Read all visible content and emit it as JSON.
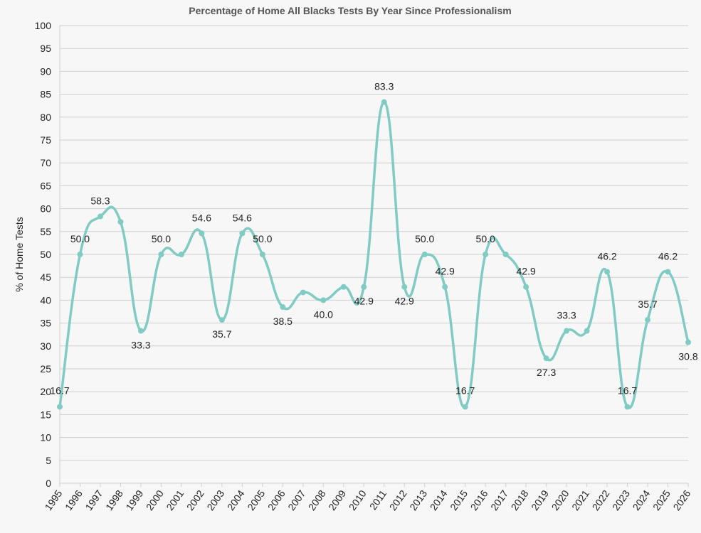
{
  "chart_data": {
    "type": "line",
    "title": "Percentage of Home All Blacks Tests By Year Since Professionalism",
    "xlabel": "",
    "ylabel": "% of Home Tests",
    "ylim": [
      0,
      100
    ],
    "ytick_step": 5,
    "grid": true,
    "smooth": true,
    "color": "#80cbc4",
    "x": [
      "1995",
      "1996",
      "1997",
      "1998",
      "1999",
      "2000",
      "2001",
      "2002",
      "2003",
      "2004",
      "2005",
      "2006",
      "2007",
      "2008",
      "2009",
      "2010",
      "2011",
      "2012",
      "2013",
      "2014",
      "2015",
      "2016",
      "2017",
      "2018",
      "2019",
      "2020",
      "2021",
      "2022",
      "2023",
      "2024",
      "2025",
      "2026"
    ],
    "series": [
      {
        "name": "% of Home Tests",
        "values": [
          16.7,
          50.0,
          58.3,
          57.1,
          33.3,
          50.0,
          50.0,
          54.6,
          35.7,
          54.6,
          50.0,
          38.5,
          41.7,
          40.0,
          42.9,
          42.9,
          83.3,
          42.9,
          50.0,
          42.9,
          16.7,
          50.0,
          50.0,
          42.9,
          27.3,
          33.3,
          33.3,
          46.2,
          16.7,
          35.7,
          46.2,
          30.8
        ]
      }
    ],
    "data_labels": [
      {
        "index": 0,
        "text": "16.7"
      },
      {
        "index": 1,
        "text": "50.0"
      },
      {
        "index": 2,
        "text": "58.3"
      },
      {
        "index": 4,
        "text": "33.3"
      },
      {
        "index": 5,
        "text": "50.0"
      },
      {
        "index": 7,
        "text": "54.6"
      },
      {
        "index": 8,
        "text": "35.7"
      },
      {
        "index": 9,
        "text": "54.6"
      },
      {
        "index": 10,
        "text": "50.0"
      },
      {
        "index": 11,
        "text": "38.5"
      },
      {
        "index": 13,
        "text": "40.0"
      },
      {
        "index": 15,
        "text": "42.9"
      },
      {
        "index": 16,
        "text": "83.3"
      },
      {
        "index": 17,
        "text": "42.9"
      },
      {
        "index": 18,
        "text": "50.0"
      },
      {
        "index": 19,
        "text": "42.9"
      },
      {
        "index": 20,
        "text": "16.7"
      },
      {
        "index": 21,
        "text": "50.0"
      },
      {
        "index": 23,
        "text": "42.9"
      },
      {
        "index": 24,
        "text": "27.3"
      },
      {
        "index": 25,
        "text": "33.3"
      },
      {
        "index": 27,
        "text": "46.2"
      },
      {
        "index": 28,
        "text": "16.7"
      },
      {
        "index": 29,
        "text": "35.7"
      },
      {
        "index": 30,
        "text": "46.2"
      },
      {
        "index": 31,
        "text": "30.8"
      }
    ]
  }
}
